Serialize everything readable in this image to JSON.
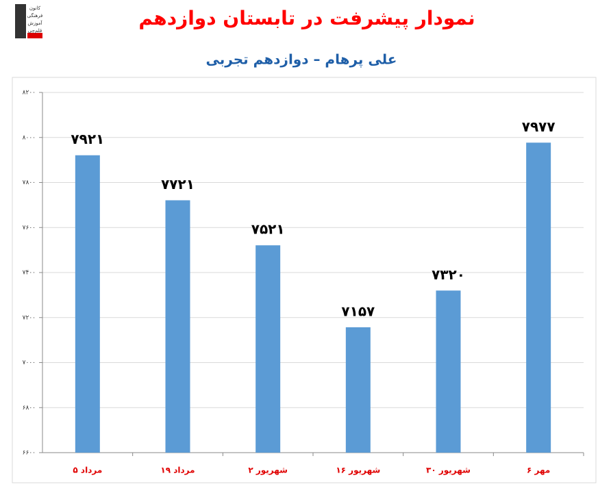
{
  "logo": {
    "lines": [
      "کانون",
      "فرهنگی",
      "آموزش",
      "قلم‌چی"
    ]
  },
  "chart_data": {
    "type": "bar",
    "title": "نمودار پیشرفت در تابستان دوازدهم",
    "subtitle": "علی پرهام – دوازدهم تجربی",
    "categories": [
      "۵ مرداد",
      "۱۹ مرداد",
      "۲ شهریور",
      "۱۶ شهریور",
      "۳۰ شهریور",
      "۶ مهر"
    ],
    "values": [
      7921,
      7721,
      7521,
      7157,
      7320,
      7977
    ],
    "value_labels": [
      "۷۹۲۱",
      "۷۷۲۱",
      "۷۵۲۱",
      "۷۱۵۷",
      "۷۳۲۰",
      "۷۹۷۷"
    ],
    "color": "#5b9bd5",
    "ylim": [
      6600,
      8200
    ],
    "yticks": [
      {
        "value": 6600,
        "label": "۶۶۰۰"
      },
      {
        "value": 6800,
        "label": "۶۸۰۰"
      },
      {
        "value": 7000,
        "label": "۷۰۰۰"
      },
      {
        "value": 7200,
        "label": "۷۲۰۰"
      },
      {
        "value": 7400,
        "label": "۷۴۰۰"
      },
      {
        "value": 7600,
        "label": "۷۶۰۰"
      },
      {
        "value": 7800,
        "label": "۷۸۰۰"
      },
      {
        "value": 8000,
        "label": "۸۰۰۰"
      },
      {
        "value": 8200,
        "label": "۸۲۰۰"
      }
    ],
    "grid": true
  }
}
